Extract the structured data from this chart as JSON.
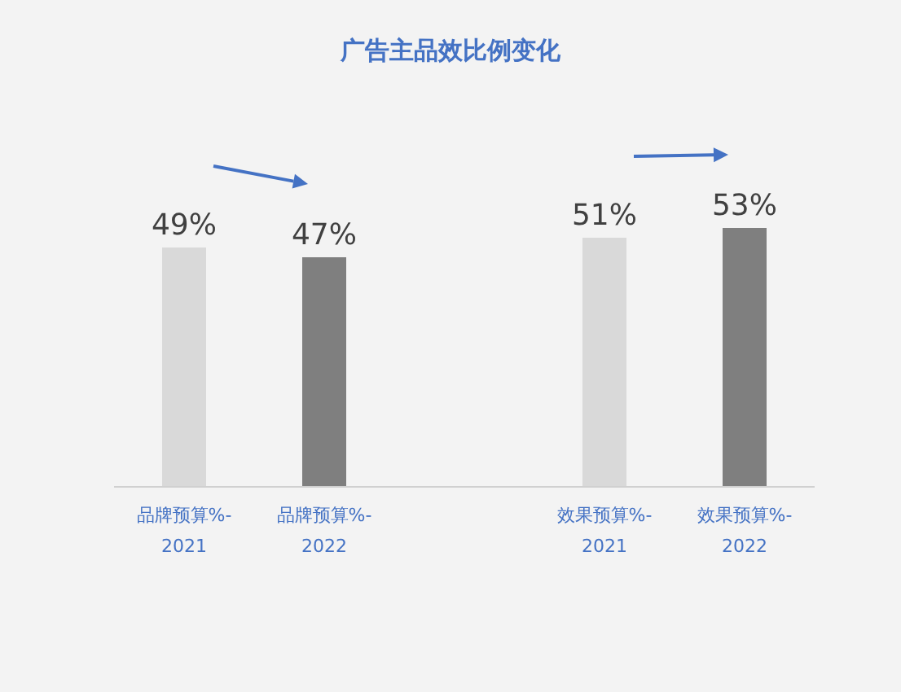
{
  "chart_data": {
    "type": "bar",
    "title": "广告主品效比例变化",
    "categories": [
      "品牌预算%-2021",
      "品牌预算%-2022",
      null,
      "效果预算%-2021",
      "效果预算%-2022"
    ],
    "values": [
      49,
      47,
      null,
      51,
      53
    ],
    "colors": [
      "#d9d9d9",
      "#7f7f7f",
      null,
      "#d9d9d9",
      "#7f7f7f"
    ],
    "value_labels": [
      "49%",
      "47%",
      null,
      "51%",
      "53%"
    ]
  }
}
